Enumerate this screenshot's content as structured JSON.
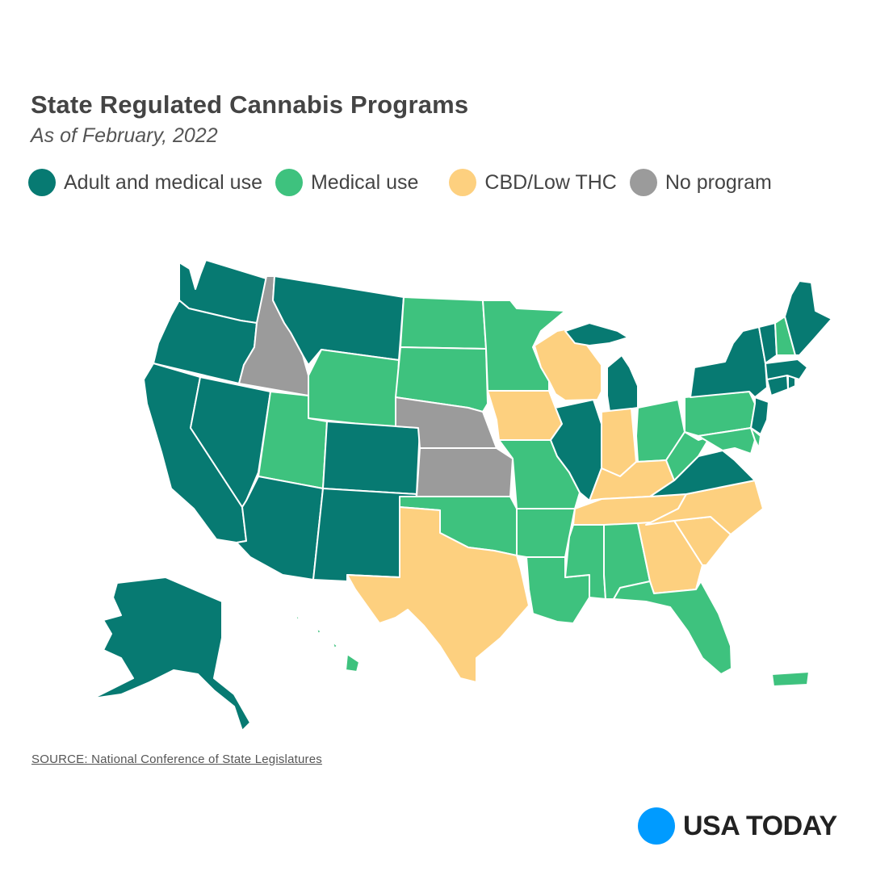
{
  "header": {
    "title": "State Regulated Cannabis Programs",
    "subtitle": "As of February, 2022"
  },
  "legend": [
    {
      "label": "Adult and medical use",
      "color": "#077a72"
    },
    {
      "label": "Medical use",
      "color": "#3ec27e"
    },
    {
      "label": "CBD/Low THC",
      "color": "#fdd07f"
    },
    {
      "label": "No program",
      "color": "#9b9b9b"
    }
  ],
  "states": {
    "adult_and_medical_use": [
      "Washington",
      "Oregon",
      "California",
      "Nevada",
      "Montana",
      "Colorado",
      "Arizona",
      "New Mexico",
      "Alaska",
      "Illinois",
      "Michigan",
      "Virginia",
      "New York",
      "Vermont",
      "Maine",
      "Massachusetts",
      "Connecticut",
      "New Jersey",
      "Rhode Island"
    ],
    "medical_use": [
      "Wyoming",
      "Utah",
      "North Dakota",
      "South Dakota",
      "Minnesota",
      "Oklahoma",
      "Missouri",
      "Arkansas",
      "Louisiana",
      "Mississippi",
      "Alabama",
      "Florida",
      "Ohio",
      "West Virginia",
      "Pennsylvania",
      "Maryland",
      "Delaware",
      "New Hampshire",
      "Hawaii",
      "Puerto Rico"
    ],
    "cbd_low_thc": [
      "Texas",
      "Wisconsin",
      "Iowa",
      "Indiana",
      "Kentucky",
      "Tennessee",
      "Georgia",
      "South Carolina",
      "North Carolina"
    ],
    "no_program": [
      "Idaho",
      "Nebraska",
      "Kansas"
    ]
  },
  "footer": {
    "source": "SOURCE:  National Conference of State Legislatures"
  },
  "brand": {
    "name": "USA TODAY",
    "dot_color": "#009bff"
  }
}
